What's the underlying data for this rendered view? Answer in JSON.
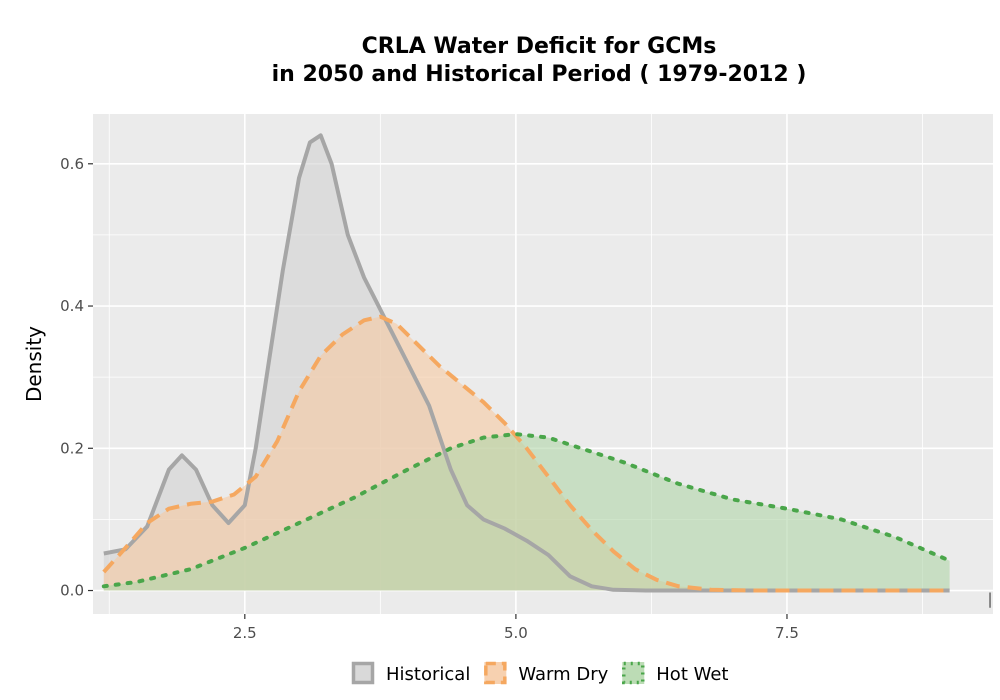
{
  "chart_data": {
    "type": "area",
    "title_line1": "CRLA  Water Deficit for GCMs",
    "title_line2": "in 2050 and Historical Period ( 1979-2012 )",
    "xlabel": "",
    "ylabel": "Density",
    "xlim": [
      1.1,
      9.4
    ],
    "ylim": [
      -0.033,
      0.67
    ],
    "x_ticks": [
      2.5,
      5.0,
      7.5
    ],
    "x_tick_labels": [
      "2.5",
      "5.0",
      "7.5"
    ],
    "y_ticks": [
      0.0,
      0.2,
      0.4,
      0.6
    ],
    "y_tick_labels": [
      "0.0",
      "0.2",
      "0.4",
      "0.6"
    ],
    "grid": true,
    "legend_position": "bottom",
    "series": [
      {
        "name": "Historical",
        "color": "#a6a6a6",
        "fill": "#d2d2d2",
        "dash": "solid",
        "points": [
          [
            1.2,
            0.052
          ],
          [
            1.4,
            0.058
          ],
          [
            1.6,
            0.09
          ],
          [
            1.8,
            0.17
          ],
          [
            1.92,
            0.19
          ],
          [
            2.05,
            0.17
          ],
          [
            2.2,
            0.12
          ],
          [
            2.35,
            0.095
          ],
          [
            2.5,
            0.12
          ],
          [
            2.6,
            0.2
          ],
          [
            2.7,
            0.3
          ],
          [
            2.85,
            0.45
          ],
          [
            3.0,
            0.58
          ],
          [
            3.1,
            0.63
          ],
          [
            3.2,
            0.64
          ],
          [
            3.3,
            0.6
          ],
          [
            3.45,
            0.5
          ],
          [
            3.6,
            0.44
          ],
          [
            3.8,
            0.38
          ],
          [
            4.0,
            0.32
          ],
          [
            4.2,
            0.26
          ],
          [
            4.4,
            0.17
          ],
          [
            4.55,
            0.12
          ],
          [
            4.7,
            0.1
          ],
          [
            4.9,
            0.087
          ],
          [
            5.1,
            0.07
          ],
          [
            5.3,
            0.05
          ],
          [
            5.5,
            0.02
          ],
          [
            5.7,
            0.006
          ],
          [
            5.9,
            0.001
          ],
          [
            6.2,
            0.0
          ],
          [
            7.0,
            0.0
          ],
          [
            8.0,
            0.0
          ],
          [
            9.0,
            0.0
          ]
        ]
      },
      {
        "name": "Warm Dry",
        "color": "#f5a860",
        "fill": "#f6c9a2",
        "dash": "dashed",
        "points": [
          [
            1.2,
            0.026
          ],
          [
            1.4,
            0.06
          ],
          [
            1.6,
            0.095
          ],
          [
            1.8,
            0.115
          ],
          [
            2.0,
            0.122
          ],
          [
            2.2,
            0.125
          ],
          [
            2.4,
            0.135
          ],
          [
            2.6,
            0.16
          ],
          [
            2.8,
            0.21
          ],
          [
            3.0,
            0.28
          ],
          [
            3.2,
            0.33
          ],
          [
            3.4,
            0.36
          ],
          [
            3.6,
            0.38
          ],
          [
            3.75,
            0.385
          ],
          [
            3.9,
            0.375
          ],
          [
            4.1,
            0.345
          ],
          [
            4.3,
            0.315
          ],
          [
            4.5,
            0.29
          ],
          [
            4.7,
            0.265
          ],
          [
            4.9,
            0.235
          ],
          [
            5.1,
            0.2
          ],
          [
            5.3,
            0.16
          ],
          [
            5.5,
            0.12
          ],
          [
            5.7,
            0.085
          ],
          [
            5.9,
            0.055
          ],
          [
            6.1,
            0.03
          ],
          [
            6.3,
            0.015
          ],
          [
            6.5,
            0.006
          ],
          [
            6.8,
            0.001
          ],
          [
            7.2,
            0.0
          ],
          [
            8.0,
            0.0
          ],
          [
            9.0,
            0.0
          ]
        ]
      },
      {
        "name": "Hot Wet",
        "color": "#4aa64a",
        "fill": "#b0d6a8",
        "dash": "dotted",
        "points": [
          [
            1.2,
            0.006
          ],
          [
            1.5,
            0.012
          ],
          [
            2.0,
            0.03
          ],
          [
            2.5,
            0.06
          ],
          [
            3.0,
            0.095
          ],
          [
            3.5,
            0.13
          ],
          [
            4.0,
            0.17
          ],
          [
            4.4,
            0.2
          ],
          [
            4.7,
            0.215
          ],
          [
            5.0,
            0.22
          ],
          [
            5.3,
            0.215
          ],
          [
            5.6,
            0.2
          ],
          [
            6.0,
            0.18
          ],
          [
            6.5,
            0.15
          ],
          [
            7.0,
            0.128
          ],
          [
            7.5,
            0.115
          ],
          [
            8.0,
            0.1
          ],
          [
            8.5,
            0.075
          ],
          [
            9.0,
            0.042
          ]
        ]
      }
    ],
    "right_edge_tick": "|"
  }
}
